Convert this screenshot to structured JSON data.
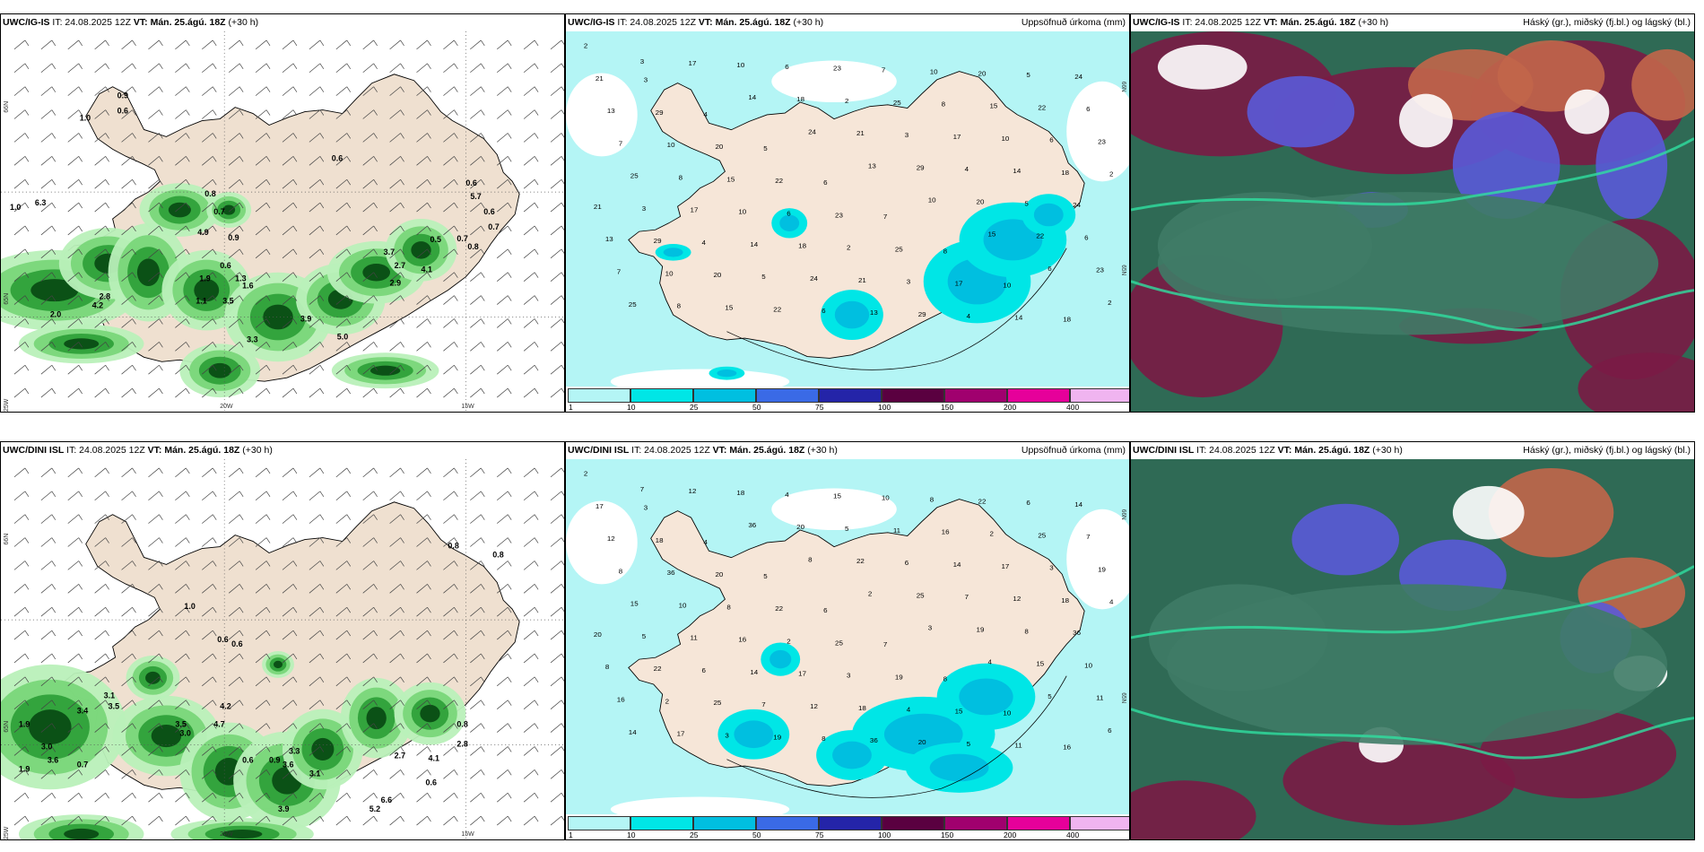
{
  "panels": [
    {
      "model": "UWC/IG-IS",
      "it": "24.08.2025 12Z",
      "vt": "Mán. 25.ágú. 18Z",
      "lead": "(+30 h)",
      "right": "",
      "kind": "wind"
    },
    {
      "model": "UWC/IG-IS",
      "it": "24.08.2025 12Z",
      "vt": "Mán. 25.ágú. 18Z",
      "lead": "(+30 h)",
      "right": "Uppsöfnuð úrkoma (mm)",
      "kind": "precip"
    },
    {
      "model": "UWC/IG-IS",
      "it": "24.08.2025 12Z",
      "vt": "Mán. 25.ágú. 18Z",
      "lead": "(+30 h)",
      "right": "Háský (gr.), miðský (fj.bl.) og lágský (bl.)",
      "kind": "cloud"
    },
    {
      "model": "UWC/DINI ISL",
      "it": "24.08.2025 12Z",
      "vt": "Mán. 25.ágú. 18Z",
      "lead": "(+30 h)",
      "right": "",
      "kind": "wind"
    },
    {
      "model": "UWC/DINI ISL",
      "it": "24.08.2025 12Z",
      "vt": "Mán. 25.ágú. 18Z",
      "lead": "(+30 h)",
      "right": "Uppsöfnuð úrkoma (mm)",
      "kind": "precip"
    },
    {
      "model": "UWC/DINI ISL",
      "it": "24.08.2025 12Z",
      "vt": "Mán. 25.ágú. 18Z",
      "lead": "(+30 h)",
      "right": "Háský (gr.), miðský (fj.bl.) og lágský (bl.)",
      "kind": "cloud"
    }
  ],
  "labels": {
    "it": "IT:",
    "vt": "VT:",
    "lat66": "66N",
    "lat65": "65N",
    "lon20": "20W",
    "lon15": "15W",
    "lon25": "25W"
  },
  "colorbar": {
    "ticks": [
      "1",
      "10",
      "25",
      "50",
      "75",
      "100",
      "150",
      "200",
      "400"
    ],
    "colors": [
      "#b4f5f5",
      "#00e6e6",
      "#00bfe0",
      "#3a6ae6",
      "#2424a8",
      "#5a0040",
      "#a0006e",
      "#e6009a",
      "#f0b4f0"
    ]
  },
  "wind_values": {
    "top": [
      "0.9",
      "0.6",
      "1.0",
      "0.6",
      "0.8",
      "0.7",
      "4.9",
      "0.9",
      "0.6",
      "1.3",
      "1.6",
      "1.9",
      "1.1",
      "3.5",
      "3.7",
      "2.7",
      "2.9",
      "4.1",
      "0.5",
      "0.7",
      "0.8",
      "0.6",
      "0.7",
      "5.7",
      "5.0",
      "3.3",
      "3.9",
      "2.8",
      "4.2",
      "2.0",
      "1.0",
      "6.3",
      "0.6"
    ],
    "bottom": [
      "0.8",
      "0.8",
      "0.6",
      "0.6",
      "1.0",
      "3.1",
      "3.4",
      "3.5",
      "1.9",
      "3.0",
      "3.6",
      "0.7",
      "1.9",
      "4.2",
      "4.7",
      "3.5",
      "3.0",
      "0.6",
      "0.9",
      "3.3",
      "3.6",
      "3.1",
      "3.9",
      "5.2",
      "6.6",
      "2.7",
      "4.1",
      "2.8",
      "0.8",
      "0.6",
      "1.1",
      "0.8",
      "0.7"
    ]
  },
  "precip_values": {
    "top": [
      "2",
      "3",
      "4",
      "5",
      "6",
      "7",
      "8",
      "10",
      "18",
      "21",
      "29",
      "20",
      "22",
      "23",
      "25",
      "17",
      "14",
      "24",
      "13",
      "10",
      "15",
      "6"
    ],
    "bottom": [
      "2",
      "3",
      "4",
      "5",
      "6",
      "7",
      "8",
      "10",
      "16",
      "17",
      "18",
      "20",
      "22",
      "25",
      "19",
      "15",
      "11",
      "14",
      "12",
      "36",
      "8"
    ]
  }
}
